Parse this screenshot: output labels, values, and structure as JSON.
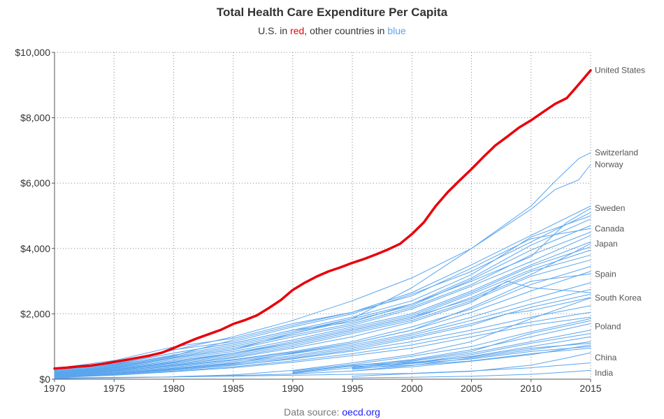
{
  "chart_data": {
    "type": "line",
    "title": "Total Health Care Expenditure Per Capita",
    "subtitle": {
      "prefix": "U.S. in ",
      "red_word": "red",
      "middle": ", other countries in ",
      "blue_word": "blue"
    },
    "source_prefix": "Data source: ",
    "source_link": "oecd.org",
    "xlim": [
      1970,
      2015
    ],
    "ylim": [
      0,
      10000
    ],
    "x_ticks": [
      1970,
      1975,
      1980,
      1985,
      1990,
      1995,
      2000,
      2005,
      2010,
      2015
    ],
    "y_ticks": [
      0,
      2000,
      4000,
      6000,
      8000,
      10000
    ],
    "y_tick_labels": [
      "$0",
      "$2,000",
      "$4,000",
      "$6,000",
      "$8,000",
      "$10,000"
    ],
    "grid": true,
    "colors": {
      "us": "#e8000b",
      "others": "#5aa5ee",
      "source_link": "#1a1aff"
    },
    "series": [
      {
        "name": "United States",
        "highlight": true,
        "x": [
          1970,
          1971,
          1972,
          1973,
          1974,
          1975,
          1976,
          1977,
          1978,
          1979,
          1980,
          1981,
          1982,
          1983,
          1984,
          1985,
          1986,
          1987,
          1988,
          1989,
          1990,
          1991,
          1992,
          1993,
          1994,
          1995,
          1996,
          1997,
          1998,
          1999,
          2000,
          2001,
          2002,
          2003,
          2004,
          2005,
          2006,
          2007,
          2008,
          2009,
          2010,
          2011,
          2012,
          2013,
          2014,
          2015
        ],
        "values": [
          326,
          353,
          387,
          415,
          465,
          525,
          590,
          657,
          724,
          810,
          950,
          1110,
          1255,
          1385,
          1515,
          1690,
          1810,
          1955,
          2180,
          2420,
          2730,
          2950,
          3140,
          3300,
          3420,
          3560,
          3680,
          3820,
          3970,
          4140,
          4440,
          4800,
          5300,
          5720,
          6080,
          6430,
          6800,
          7150,
          7420,
          7700,
          7920,
          8170,
          8420,
          8600,
          9020,
          9450
        ]
      },
      {
        "name": "Switzerland",
        "x": [
          1970,
          1975,
          1980,
          1985,
          1990,
          1995,
          2000,
          2005,
          2010,
          2012,
          2014,
          2015
        ],
        "values": [
          310,
          520,
          890,
          1300,
          1800,
          2400,
          3100,
          4000,
          5300,
          6050,
          6750,
          6930
        ]
      },
      {
        "name": "Norway",
        "x": [
          1970,
          1975,
          1980,
          1985,
          1990,
          1995,
          2000,
          2005,
          2010,
          2012,
          2014,
          2015
        ],
        "values": [
          180,
          360,
          650,
          900,
          1400,
          1850,
          2800,
          4000,
          5200,
          5800,
          6100,
          6570
        ]
      },
      {
        "name": "Sweden",
        "x": [
          1970,
          1975,
          1980,
          1985,
          1990,
          1995,
          2000,
          2005,
          2010,
          2013,
          2015
        ],
        "values": [
          300,
          470,
          800,
          1100,
          1500,
          1750,
          2300,
          3000,
          3750,
          4800,
          5230
        ]
      },
      {
        "name": "Canada",
        "x": [
          1970,
          1975,
          1980,
          1985,
          1990,
          1995,
          2000,
          2005,
          2010,
          2015
        ],
        "values": [
          270,
          440,
          720,
          1200,
          1650,
          2050,
          2550,
          3400,
          4300,
          4610
        ]
      },
      {
        "name": "Japan",
        "x": [
          1970,
          1975,
          1980,
          1985,
          1990,
          1995,
          2000,
          2005,
          2010,
          2015
        ],
        "values": [
          150,
          280,
          520,
          800,
          1100,
          1500,
          1900,
          2450,
          3200,
          4150
        ]
      },
      {
        "name": "Spain",
        "x": [
          1970,
          1975,
          1980,
          1985,
          1990,
          1995,
          2000,
          2005,
          2010,
          2015
        ],
        "values": [
          90,
          180,
          330,
          480,
          800,
          1100,
          1500,
          2200,
          3000,
          3220
        ]
      },
      {
        "name": "South Korea",
        "x": [
          1980,
          1985,
          1990,
          1995,
          2000,
          2005,
          2010,
          2015
        ],
        "values": [
          80,
          130,
          270,
          500,
          750,
          1150,
          1850,
          2490
        ]
      },
      {
        "name": "Poland",
        "x": [
          1990,
          1995,
          2000,
          2005,
          2010,
          2015
        ],
        "values": [
          220,
          420,
          570,
          850,
          1400,
          1790
        ]
      },
      {
        "name": "China",
        "x": [
          1995,
          2000,
          2005,
          2010,
          2013,
          2015
        ],
        "values": [
          90,
          170,
          240,
          430,
          650,
          810
        ]
      },
      {
        "name": "India",
        "x": [
          1995,
          2000,
          2005,
          2010,
          2013,
          2015
        ],
        "values": [
          40,
          60,
          90,
          150,
          220,
          270
        ]
      },
      {
        "x": [
          1970,
          1975,
          1980,
          1985,
          1990,
          1995,
          2000,
          2005,
          2010,
          2015
        ],
        "values": [
          330,
          570,
          990,
          1250,
          1700,
          2050,
          2650,
          3500,
          4400,
          5300
        ]
      },
      {
        "x": [
          1970,
          1975,
          1980,
          1985,
          1990,
          1995,
          2000,
          2005,
          2010,
          2015
        ],
        "values": [
          300,
          520,
          900,
          1150,
          1600,
          2000,
          2600,
          3300,
          4200,
          5100
        ]
      },
      {
        "x": [
          1970,
          1975,
          1980,
          1985,
          1990,
          1995,
          2000,
          2005,
          2010,
          2015
        ],
        "values": [
          250,
          450,
          800,
          1100,
          1500,
          1900,
          2400,
          3200,
          4350,
          5000
        ]
      },
      {
        "x": [
          1970,
          1975,
          1980,
          1985,
          1990,
          1995,
          2000,
          2005,
          2010,
          2015
        ],
        "values": [
          230,
          420,
          740,
          1050,
          1450,
          1850,
          2300,
          3100,
          4100,
          4900
        ]
      },
      {
        "x": [
          1970,
          1975,
          1980,
          1985,
          1990,
          1995,
          2000,
          2005,
          2010,
          2015
        ],
        "values": [
          220,
          400,
          700,
          1000,
          1400,
          1800,
          2250,
          3050,
          3950,
          4700
        ]
      },
      {
        "x": [
          1970,
          1975,
          1980,
          1985,
          1990,
          1995,
          2000,
          2005,
          2010,
          2015
        ],
        "values": [
          200,
          380,
          670,
          950,
          1350,
          1700,
          2200,
          2900,
          3800,
          4500
        ]
      },
      {
        "x": [
          1970,
          1975,
          1980,
          1985,
          1990,
          1995,
          2000,
          2005,
          2010,
          2015
        ],
        "values": [
          190,
          360,
          640,
          900,
          1300,
          1650,
          2150,
          2850,
          3600,
          4400
        ]
      },
      {
        "x": [
          1970,
          1975,
          1980,
          1985,
          1990,
          1995,
          2000,
          2005,
          2010,
          2015
        ],
        "values": [
          180,
          340,
          600,
          850,
          1200,
          1600,
          2000,
          2700,
          3500,
          4200
        ]
      },
      {
        "x": [
          1970,
          1975,
          1980,
          1985,
          1990,
          1995,
          2000,
          2005,
          2010,
          2015
        ],
        "values": [
          170,
          320,
          560,
          800,
          1150,
          1550,
          1950,
          2650,
          3450,
          4050
        ]
      },
      {
        "x": [
          1970,
          1975,
          1980,
          1985,
          1990,
          1995,
          2000,
          2005,
          2010,
          2015
        ],
        "values": [
          160,
          300,
          530,
          760,
          1100,
          1500,
          1900,
          2600,
          3350,
          3950
        ]
      },
      {
        "x": [
          1970,
          1975,
          1980,
          1985,
          1990,
          1995,
          2000,
          2005,
          2010,
          2015
        ],
        "values": [
          150,
          280,
          500,
          720,
          1050,
          1450,
          1850,
          2500,
          3300,
          3800
        ]
      },
      {
        "x": [
          1970,
          1975,
          1980,
          1985,
          1990,
          1995,
          2000,
          2005,
          2010,
          2015
        ],
        "values": [
          140,
          260,
          470,
          680,
          1000,
          1400,
          1800,
          2400,
          3150,
          3650
        ]
      },
      {
        "x": [
          1970,
          1975,
          1980,
          1985,
          1990,
          1995,
          2000,
          2005,
          2008,
          2010,
          2015
        ],
        "values": [
          120,
          240,
          440,
          650,
          950,
          1300,
          1750,
          2350,
          3000,
          2800,
          2650
        ]
      },
      {
        "x": [
          1970,
          1975,
          1980,
          1985,
          1990,
          1995,
          2000,
          2005,
          2010,
          2015
        ],
        "values": [
          130,
          250,
          420,
          600,
          850,
          1150,
          1600,
          2150,
          2900,
          3450
        ]
      },
      {
        "x": [
          1970,
          1975,
          1980,
          1985,
          1990,
          1995,
          2000,
          2005,
          2010,
          2015
        ],
        "values": [
          110,
          220,
          400,
          580,
          820,
          1100,
          1500,
          2050,
          2700,
          3300
        ]
      },
      {
        "x": [
          1970,
          1975,
          1980,
          1985,
          1990,
          1995,
          2000,
          2005,
          2010,
          2015
        ],
        "values": [
          100,
          200,
          370,
          540,
          780,
          1050,
          1400,
          1900,
          2450,
          2950
        ]
      },
      {
        "x": [
          1970,
          1975,
          1980,
          1985,
          1990,
          1995,
          2000,
          2005,
          2010,
          2015
        ],
        "values": [
          90,
          180,
          340,
          500,
          720,
          1000,
          1350,
          1800,
          2300,
          2750
        ]
      },
      {
        "x": [
          1970,
          1975,
          1980,
          1985,
          1990,
          1995,
          2000,
          2005,
          2010,
          2015
        ],
        "values": [
          80,
          170,
          310,
          460,
          680,
          950,
          1300,
          1700,
          2200,
          2600
        ]
      },
      {
        "x": [
          1970,
          1975,
          1980,
          1985,
          1990,
          1995,
          2000,
          2005,
          2008,
          2010,
          2015
        ],
        "values": [
          70,
          150,
          280,
          420,
          640,
          900,
          1250,
          1650,
          2000,
          2100,
          2500
        ]
      },
      {
        "x": [
          1970,
          1975,
          1980,
          1985,
          1990,
          1995,
          2000,
          2005,
          2010,
          2015
        ],
        "values": [
          80,
          160,
          290,
          430,
          620,
          860,
          1150,
          1500,
          1900,
          2250
        ]
      },
      {
        "x": [
          1970,
          1975,
          1980,
          1985,
          1990,
          1995,
          2000,
          2005,
          2010,
          2015
        ],
        "values": [
          60,
          130,
          250,
          380,
          560,
          780,
          1050,
          1400,
          1750,
          2050
        ]
      },
      {
        "x": [
          1970,
          1975,
          1980,
          1985,
          1990,
          1995,
          2000,
          2005,
          2010,
          2015
        ],
        "values": [
          50,
          120,
          230,
          350,
          520,
          720,
          950,
          1300,
          1650,
          1900
        ]
      },
      {
        "x": [
          1990,
          1995,
          2000,
          2005,
          2010,
          2015
        ],
        "values": [
          250,
          450,
          700,
          1000,
          1450,
          1850
        ]
      },
      {
        "x": [
          1990,
          1995,
          2000,
          2005,
          2010,
          2015
        ],
        "values": [
          200,
          400,
          600,
          900,
          1300,
          1700
        ]
      },
      {
        "x": [
          1990,
          1995,
          2000,
          2005,
          2010,
          2015
        ],
        "values": [
          180,
          350,
          500,
          750,
          1100,
          1400
        ]
      },
      {
        "x": [
          1995,
          2000,
          2005,
          2010,
          2015
        ],
        "values": [
          350,
          550,
          800,
          1150,
          1500
        ]
      },
      {
        "x": [
          1995,
          2000,
          2005,
          2010,
          2015
        ],
        "values": [
          300,
          480,
          700,
          1000,
          1300
        ]
      },
      {
        "x": [
          1995,
          2000,
          2005,
          2010,
          2015
        ],
        "values": [
          250,
          420,
          650,
          900,
          1150
        ]
      },
      {
        "x": [
          1995,
          2000,
          2005,
          2010,
          2015
        ],
        "values": [
          420,
          520,
          680,
          950,
          1100
        ]
      },
      {
        "x": [
          1995,
          2000,
          2005,
          2010,
          2015
        ],
        "values": [
          380,
          480,
          620,
          850,
          1000
        ]
      },
      {
        "x": [
          1995,
          2000,
          2005,
          2010,
          2015
        ],
        "values": [
          330,
          430,
          560,
          780,
          950
        ]
      },
      {
        "x": [
          1970,
          1975,
          1980,
          1985,
          1990,
          1995,
          2000,
          2005,
          2010,
          2015
        ],
        "values": [
          20,
          40,
          70,
          110,
          160,
          250,
          380,
          550,
          750,
          1050
        ]
      },
      {
        "x": [
          1970,
          1980,
          1990,
          2000,
          2005,
          2010,
          2015
        ],
        "values": [
          40,
          70,
          120,
          180,
          250,
          350,
          500
        ]
      }
    ],
    "labels": [
      {
        "text": "United States",
        "value": 9450,
        "y": 9450
      },
      {
        "text": "Switzerland",
        "y": 6930
      },
      {
        "text": "Norway",
        "y": 6570
      },
      {
        "text": "Sweden",
        "y": 5230
      },
      {
        "text": "Canada",
        "y": 4610
      },
      {
        "text": "Japan",
        "y": 4150
      },
      {
        "text": "Spain",
        "y": 3220
      },
      {
        "text": "South Korea",
        "y": 2490
      },
      {
        "text": "Poland",
        "y": 1610
      },
      {
        "text": "China",
        "y": 660
      },
      {
        "text": "India",
        "y": 190
      }
    ]
  }
}
